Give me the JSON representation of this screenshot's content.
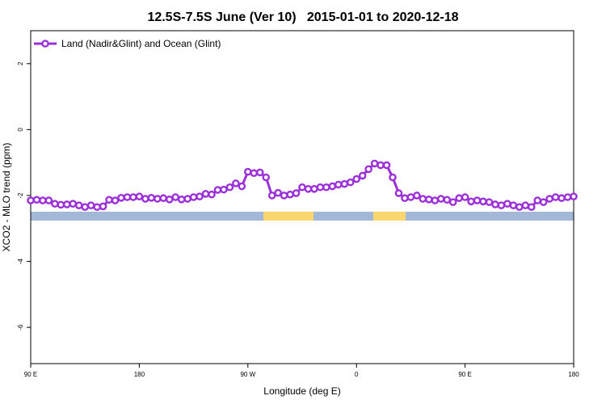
{
  "chart_data": {
    "type": "line",
    "title": "12.5S-7.5S June (Ver 10)   2015-01-01 to 2020-12-18",
    "x_label": "Longitude (deg E)",
    "y_label": "XCO2 - MLO trend (ppm)",
    "x": [
      90,
      95,
      100,
      105,
      110,
      115,
      120,
      125,
      130,
      135,
      140,
      145,
      150,
      155,
      160,
      165,
      170,
      175,
      180,
      185,
      190,
      195,
      200,
      205,
      210,
      215,
      220,
      225,
      230,
      235,
      240,
      245,
      250,
      255,
      260,
      265,
      270,
      275,
      280,
      285,
      290,
      295,
      300,
      305,
      310,
      315,
      320,
      325,
      330,
      335,
      340,
      345,
      350,
      355,
      360,
      365,
      370,
      375,
      380,
      385,
      390,
      395,
      400,
      405,
      410,
      415,
      420,
      425,
      430,
      435,
      440,
      445,
      450,
      455,
      460,
      465,
      470,
      475,
      480,
      485,
      490,
      495,
      500,
      505,
      510,
      515,
      520,
      525,
      530,
      535,
      540
    ],
    "series": [
      {
        "name": "Land (Nadir&Glint) and Ocean (Glint)",
        "color": "#9b30d9",
        "values": [
          -2.15,
          -2.13,
          -2.15,
          -2.15,
          -2.25,
          -2.28,
          -2.27,
          -2.25,
          -2.3,
          -2.35,
          -2.3,
          -2.35,
          -2.33,
          -2.13,
          -2.15,
          -2.07,
          -2.05,
          -2.05,
          -2.03,
          -2.1,
          -2.07,
          -2.1,
          -2.08,
          -2.12,
          -2.05,
          -2.12,
          -2.1,
          -2.05,
          -2.03,
          -1.95,
          -1.97,
          -1.83,
          -1.82,
          -1.75,
          -1.63,
          -1.72,
          -1.28,
          -1.32,
          -1.3,
          -1.45,
          -2.0,
          -1.92,
          -2.0,
          -1.97,
          -1.93,
          -1.75,
          -1.8,
          -1.8,
          -1.75,
          -1.75,
          -1.72,
          -1.67,
          -1.65,
          -1.6,
          -1.5,
          -1.4,
          -1.2,
          -1.03,
          -1.08,
          -1.08,
          -1.45,
          -1.93,
          -2.08,
          -2.05,
          -2.0,
          -2.1,
          -2.12,
          -2.15,
          -2.1,
          -2.13,
          -2.2,
          -2.08,
          -2.05,
          -2.18,
          -2.15,
          -2.18,
          -2.2,
          -2.27,
          -2.3,
          -2.25,
          -2.3,
          -2.35,
          -2.3,
          -2.35,
          -2.15,
          -2.2,
          -2.1,
          -2.05,
          -2.08,
          -2.05,
          -2.03
        ]
      }
    ],
    "xlim": [
      90,
      540
    ],
    "xticks": [
      {
        "value": 90,
        "label": "90 E"
      },
      180,
      {
        "value": 270,
        "label": "90 W"
      },
      {
        "value": 360,
        "label": "0"
      },
      {
        "value": 450,
        "label": "90 E"
      },
      {
        "value": 540,
        "label": "180"
      }
    ],
    "ylim": [
      -7.1,
      3
    ],
    "yticks": [
      2,
      0,
      -2,
      -4,
      -6
    ],
    "legend": "top-left"
  }
}
